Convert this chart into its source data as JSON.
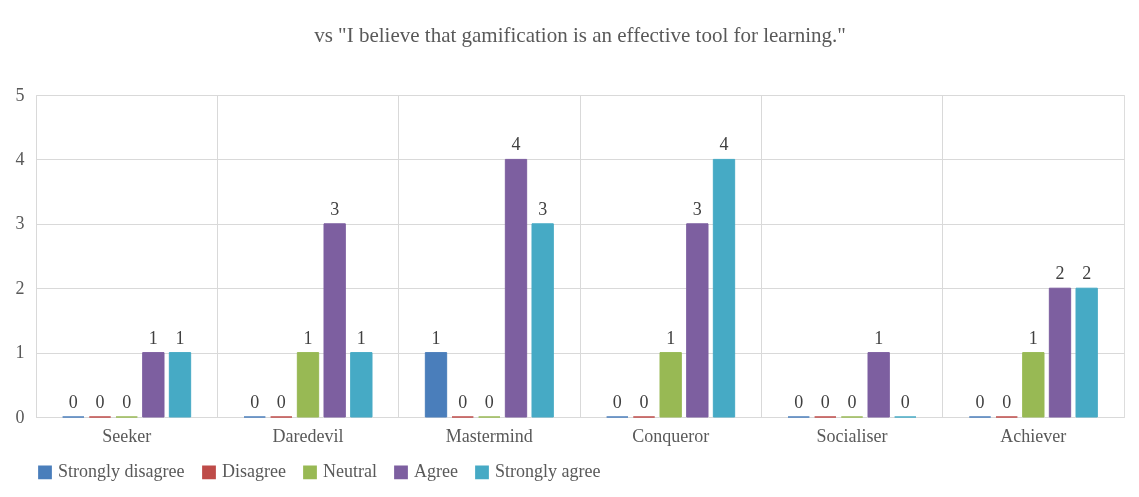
{
  "chart_data": {
    "type": "bar",
    "title": "vs \"I believe that gamification is an effective tool for learning.\"",
    "categories": [
      "Seeker",
      "Daredevil",
      "Mastermind",
      "Conqueror",
      "Socialiser",
      "Achiever"
    ],
    "series": [
      {
        "name": "Strongly disagree",
        "color": "#4a7ebb",
        "values": [
          0,
          0,
          1,
          0,
          0,
          0
        ]
      },
      {
        "name": "Disagree",
        "color": "#be4b48",
        "values": [
          0,
          0,
          0,
          0,
          0,
          0
        ]
      },
      {
        "name": "Neutral",
        "color": "#98b954",
        "values": [
          0,
          1,
          0,
          1,
          0,
          1
        ]
      },
      {
        "name": "Agree",
        "color": "#7d5fa0",
        "values": [
          1,
          3,
          4,
          3,
          1,
          2
        ]
      },
      {
        "name": "Strongly agree",
        "color": "#46aac5",
        "values": [
          1,
          1,
          3,
          4,
          0,
          2
        ]
      }
    ],
    "ylim": [
      0,
      5
    ],
    "yticks": [
      0,
      1,
      2,
      3,
      4,
      5
    ],
    "grid": true,
    "legend": "bottom",
    "data_labels": true
  }
}
